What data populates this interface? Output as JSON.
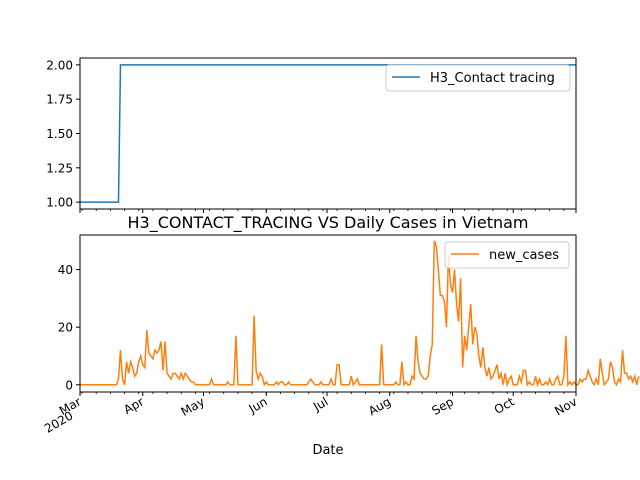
{
  "chart_data": [
    {
      "type": "line",
      "title": "",
      "xlabel": "",
      "ylabel": "",
      "ylim": [
        0.95,
        2.05
      ],
      "yticks": [
        "1.00",
        "1.25",
        "1.50",
        "1.75",
        "2.00"
      ],
      "x_range": [
        "2020-03-01",
        "2020-11-01"
      ],
      "legend_position": "top-right",
      "series": [
        {
          "name": "H3_Contact tracing",
          "color": "#1f77b4",
          "points": [
            [
              "2020-03-01",
              1
            ],
            [
              "2020-03-20",
              1
            ],
            [
              "2020-03-21",
              2
            ],
            [
              "2020-11-01",
              2
            ]
          ]
        }
      ]
    },
    {
      "type": "line",
      "title": "H3_CONTACT_TRACING VS Daily Cases in Vietnam",
      "xlabel": "Date",
      "ylabel": "",
      "ylim": [
        -2.5,
        52
      ],
      "yticks": [
        "0",
        "20",
        "40"
      ],
      "legend_position": "top-right",
      "x_ticks": [
        {
          "date": "2020-03-01",
          "label": "Mar",
          "sublabel": "2020"
        },
        {
          "date": "2020-04-01",
          "label": "Apr"
        },
        {
          "date": "2020-05-01",
          "label": "May"
        },
        {
          "date": "2020-06-01",
          "label": "Jun"
        },
        {
          "date": "2020-07-01",
          "label": "Jul"
        },
        {
          "date": "2020-08-01",
          "label": "Aug"
        },
        {
          "date": "2020-09-01",
          "label": "Sep"
        },
        {
          "date": "2020-10-01",
          "label": "Oct"
        },
        {
          "date": "2020-11-01",
          "label": "Nov"
        }
      ],
      "series": [
        {
          "name": "new_cases",
          "color": "#ff7f0e",
          "start_date": "2020-03-01",
          "values": [
            0,
            0,
            0,
            0,
            0,
            0,
            0,
            0,
            0,
            0,
            0,
            0,
            0,
            0,
            0,
            0,
            0,
            0,
            0,
            2,
            12,
            2,
            0,
            8,
            4,
            8,
            6,
            3,
            4,
            8,
            10,
            7,
            6,
            19,
            11,
            10,
            9,
            12,
            11,
            12,
            15,
            5,
            15,
            4,
            3,
            2,
            4,
            4,
            3,
            2,
            4,
            2,
            4,
            3,
            2,
            1,
            1,
            0,
            0,
            0,
            0,
            0,
            0,
            0,
            0,
            2,
            0,
            0,
            0,
            0,
            0,
            0,
            0,
            1,
            0,
            0,
            0,
            17,
            0,
            0,
            0,
            0,
            0,
            0,
            0,
            0,
            24,
            5,
            2,
            4,
            3,
            0,
            1,
            0,
            0,
            0,
            0,
            1,
            0,
            1,
            1,
            0,
            0,
            1,
            0,
            0,
            0,
            0,
            0,
            0,
            0,
            0,
            0,
            1,
            2,
            1,
            0,
            0,
            0,
            1,
            0,
            0,
            0,
            0,
            2,
            0,
            0,
            7,
            7,
            0,
            0,
            0,
            0,
            0,
            3,
            0,
            1,
            2,
            0,
            0,
            0,
            0,
            0,
            0,
            0,
            0,
            0,
            0,
            0,
            14,
            0,
            0,
            0,
            0,
            0,
            0,
            1,
            0,
            0,
            8,
            0,
            1,
            0,
            0,
            3,
            2,
            17,
            8,
            4,
            3,
            2,
            2,
            3,
            10,
            14,
            50,
            48,
            40,
            31,
            31,
            29,
            20,
            45,
            35,
            32,
            40,
            28,
            22,
            37,
            6,
            17,
            12,
            20,
            28,
            14,
            20,
            18,
            10,
            6,
            13,
            6,
            3,
            6,
            2,
            3,
            5,
            7,
            2,
            4,
            0,
            4,
            0,
            2,
            3,
            0,
            0,
            0,
            3,
            1,
            5,
            5,
            0,
            1,
            0,
            0,
            3,
            0,
            2,
            0,
            0,
            1,
            0,
            2,
            0,
            0,
            2,
            3,
            0,
            0,
            3,
            17,
            0,
            1,
            0,
            1,
            0,
            0,
            2,
            1,
            2,
            2,
            5,
            3,
            1,
            0,
            2,
            0,
            9,
            4,
            0,
            1,
            2,
            8,
            6,
            1,
            0,
            2,
            1,
            12,
            4,
            4,
            2,
            3,
            1,
            3,
            0,
            3
          ]
        }
      ]
    }
  ]
}
